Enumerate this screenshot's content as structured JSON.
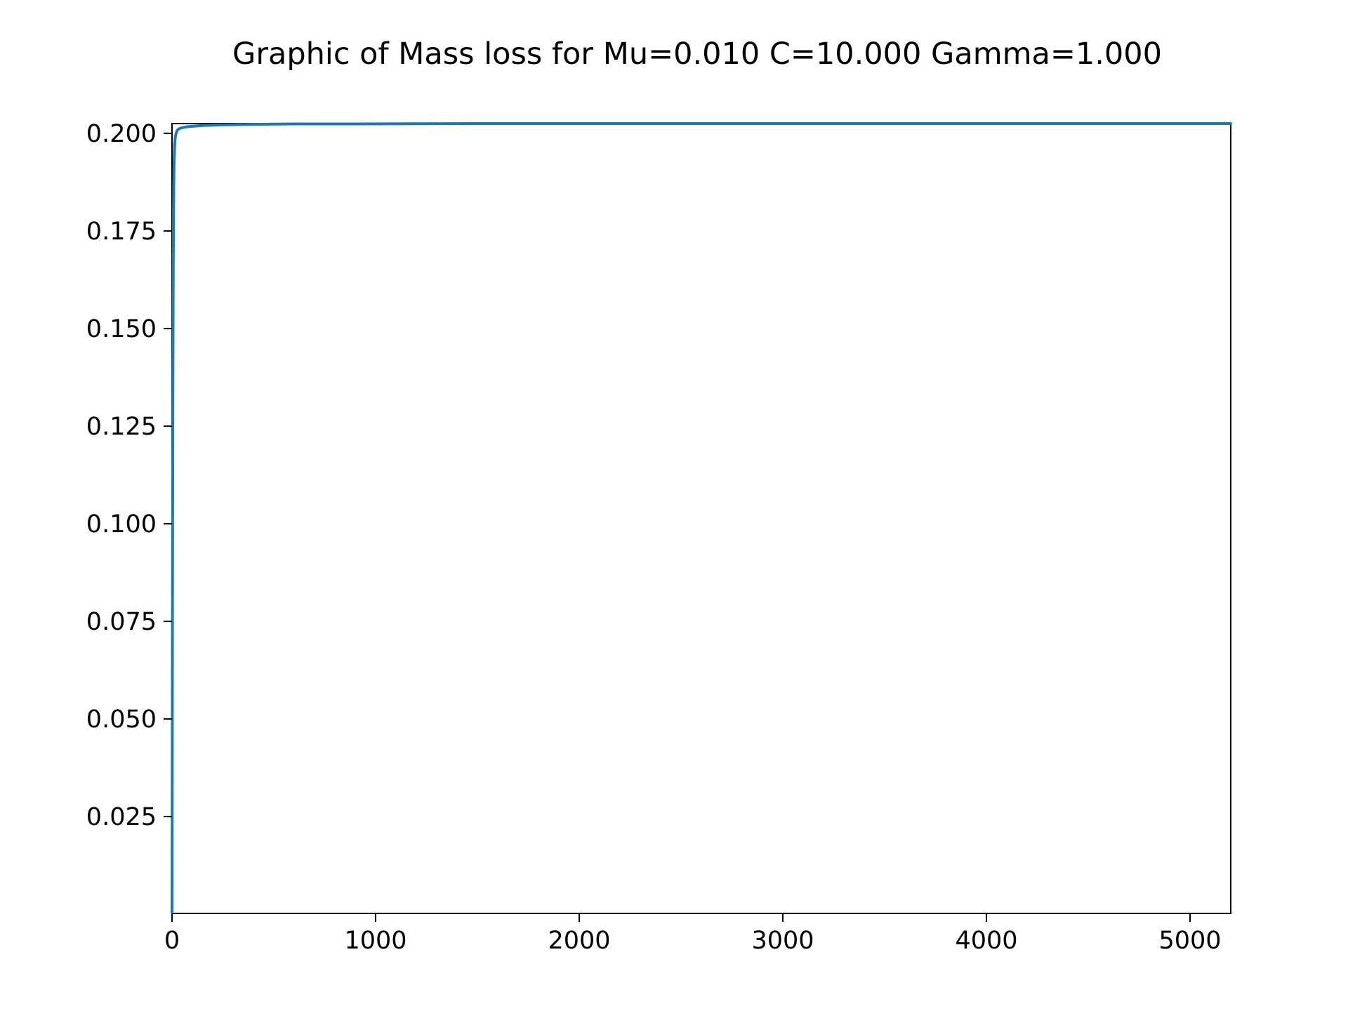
{
  "chart_data": {
    "type": "line",
    "title": "Graphic of Mass loss for Mu=0.010 C=10.000 Gamma=1.000",
    "xlabel": "",
    "ylabel": "",
    "xlim": [
      0,
      5200
    ],
    "ylim": [
      0.0002,
      0.2025
    ],
    "x_ticks": [
      0,
      1000,
      2000,
      3000,
      4000,
      5000
    ],
    "y_ticks": [
      0.025,
      0.05,
      0.075,
      0.1,
      0.125,
      0.15,
      0.175,
      0.2
    ],
    "x_tick_labels": [
      "0",
      "1000",
      "2000",
      "3000",
      "4000",
      "5000"
    ],
    "y_tick_labels": [
      "0.025",
      "0.050",
      "0.075",
      "0.100",
      "0.125",
      "0.150",
      "0.175",
      "0.200"
    ],
    "grid": false,
    "legend": false,
    "colors": {
      "line": "#1f77b4",
      "axes": "#000000"
    },
    "series": [
      {
        "x": [
          0,
          2,
          4,
          6,
          8,
          10,
          13,
          16,
          20,
          25,
          30,
          40,
          55,
          75,
          100,
          150,
          200,
          300,
          400,
          600,
          900,
          1500,
          2500,
          3500,
          4500,
          5200
        ],
        "y": [
          0.0005,
          0.07,
          0.13,
          0.165,
          0.183,
          0.192,
          0.197,
          0.199,
          0.2,
          0.2007,
          0.201,
          0.2013,
          0.2015,
          0.2017,
          0.2018,
          0.202,
          0.2021,
          0.2022,
          0.2023,
          0.2024,
          0.2024,
          0.2025,
          0.2025,
          0.2025,
          0.2025,
          0.2025
        ]
      }
    ]
  }
}
